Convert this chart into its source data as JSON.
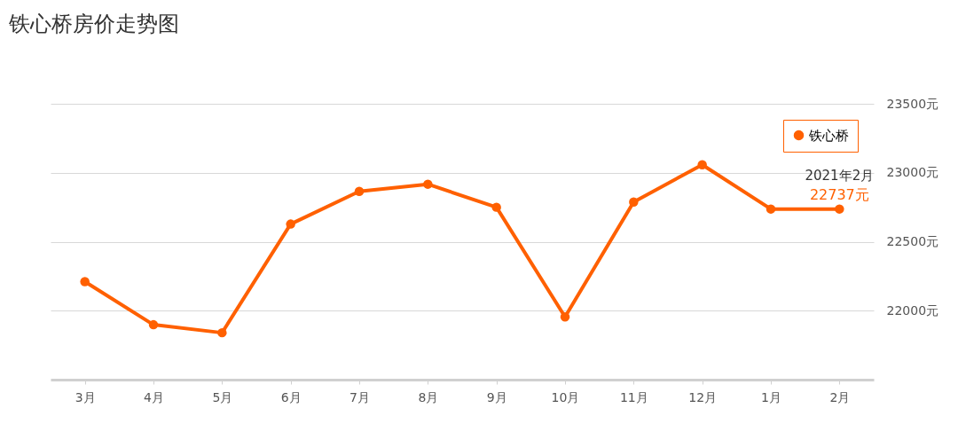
{
  "chart_data": {
    "type": "line",
    "title": "铁心桥房价走势图",
    "categories": [
      "3月",
      "4月",
      "5月",
      "6月",
      "7月",
      "8月",
      "9月",
      "10月",
      "11月",
      "12月",
      "1月",
      "2月"
    ],
    "series": [
      {
        "name": "铁心桥",
        "color": "#ff6000",
        "values": [
          22211,
          21898,
          21840,
          22628,
          22865,
          22917,
          22750,
          21955,
          22788,
          23058,
          22737,
          22737
        ],
        "value_labels": [
          null,
          null,
          null,
          null,
          null,
          null,
          null,
          null,
          null,
          null,
          null,
          "22737元"
        ]
      }
    ],
    "ylim": [
      21500,
      23500
    ],
    "yticks": [
      {
        "value": 22000,
        "label": "22000元"
      },
      {
        "value": 22500,
        "label": "22500元"
      },
      {
        "value": 23000,
        "label": "23000元"
      },
      {
        "value": 23500,
        "label": "23500元"
      }
    ],
    "annotations": [
      {
        "text": "2021年2月",
        "x": "2月",
        "y": 22737
      }
    ],
    "grid": "y",
    "legend": "top right",
    "marker": "circle",
    "line_style": "solid"
  }
}
